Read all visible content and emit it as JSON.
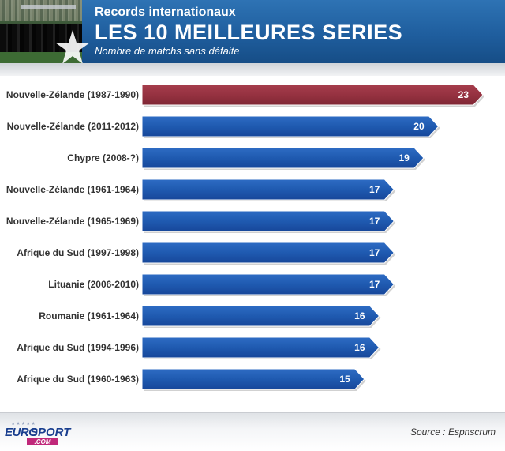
{
  "header": {
    "subtitle": "Records internationaux",
    "title": "LES 10 MEILLEURES SERIES",
    "description": "Nombre de matchs sans défaite"
  },
  "colors": {
    "highlight_bar": "#963241",
    "bar": "#1f5ab0",
    "header_blue": "#1f5e9e"
  },
  "chart_data": {
    "type": "bar",
    "orientation": "horizontal",
    "categories": [
      "Nouvelle-Zélande (1987-1990)",
      "Nouvelle-Zélande (2011-2012)",
      "Chypre (2008-?)",
      "Nouvelle-Zélande (1961-1964)",
      "Nouvelle-Zélande (1965-1969)",
      "Afrique du Sud (1997-1998)",
      "Lituanie (2006-2010)",
      "Roumanie (1961-1964)",
      "Afrique du Sud (1994-1996)",
      "Afrique du Sud (1960-1963)"
    ],
    "values": [
      23,
      20,
      19,
      17,
      17,
      17,
      17,
      16,
      16,
      15
    ],
    "highlight_index": 0,
    "title": "LES 10 MEILLEURES SERIES",
    "xlabel": "",
    "ylabel": "",
    "grid": false
  },
  "footer": {
    "logo_euro": "EURO",
    "logo_sport": "SPORT",
    "logo_com": ".COM",
    "source": "Source : Espnscrum"
  }
}
